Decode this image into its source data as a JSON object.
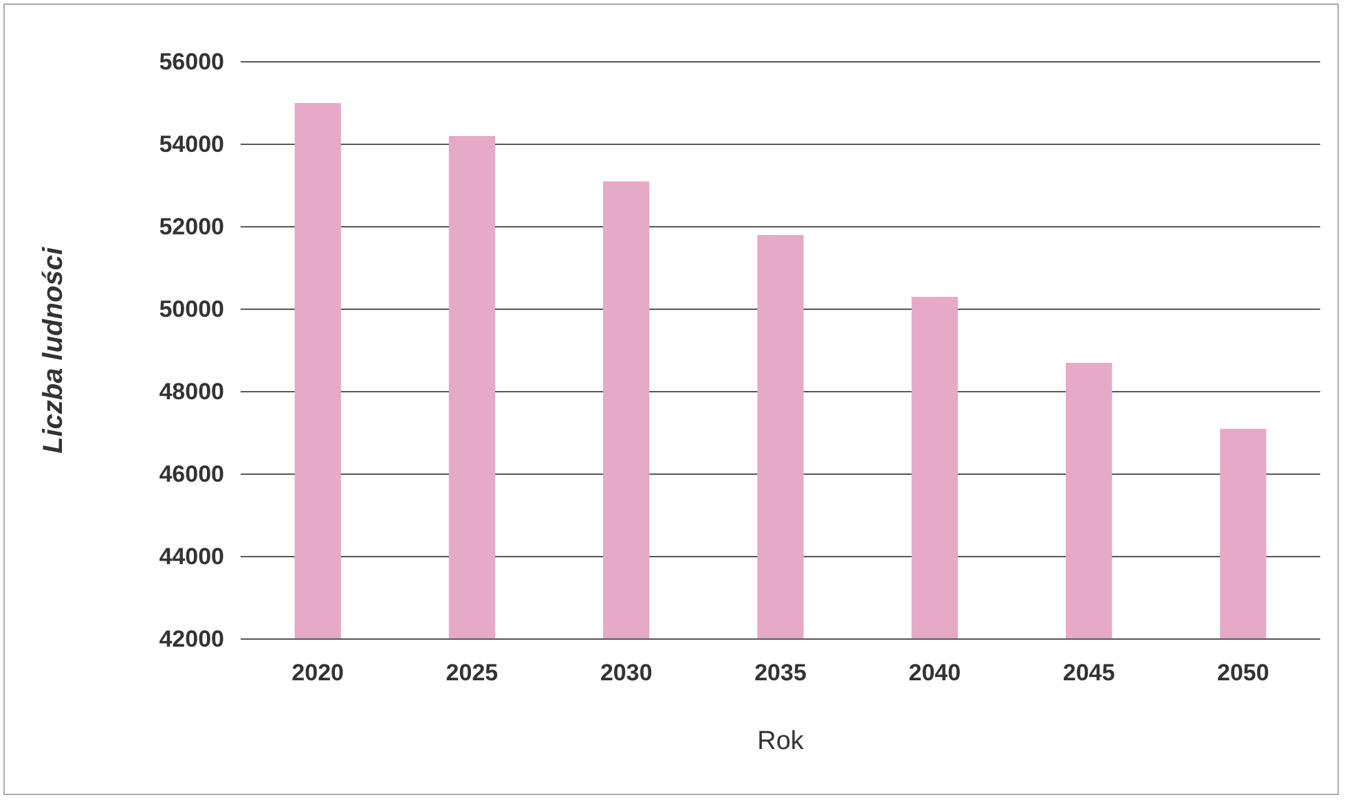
{
  "chart_data": {
    "type": "bar",
    "xlabel": "Rok",
    "ylabel": "Liczba ludności",
    "categories": [
      "2020",
      "2025",
      "2030",
      "2035",
      "2040",
      "2045",
      "2050"
    ],
    "values": [
      55000,
      54200,
      53100,
      51800,
      50300,
      48700,
      47100
    ],
    "color": "#e6a9c6",
    "ylim": [
      42000,
      56000
    ],
    "yticks": [
      42000,
      44000,
      46000,
      48000,
      50000,
      52000,
      54000,
      56000
    ],
    "grid": "y"
  }
}
